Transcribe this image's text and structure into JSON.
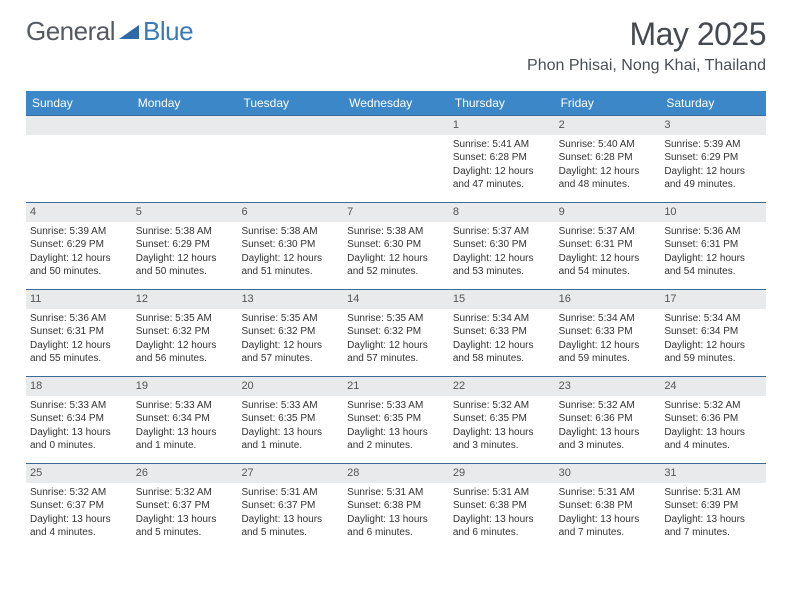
{
  "logo": {
    "text1": "General",
    "text2": "Blue",
    "icon_color": "#2f6aa8"
  },
  "title": "May 2025",
  "location": "Phon Phisai, Nong Khai, Thailand",
  "colors": {
    "header_bg": "#3c87c7",
    "header_text": "#ffffff",
    "band_bg": "#e9eaeb",
    "cell_text": "#333333",
    "border": "#3c6a96",
    "title_color": "#454a50",
    "logo_gray": "#555a60",
    "logo_blue": "#3a7ab8"
  },
  "day_names": [
    "Sunday",
    "Monday",
    "Tuesday",
    "Wednesday",
    "Thursday",
    "Friday",
    "Saturday"
  ],
  "weeks": [
    [
      null,
      null,
      null,
      null,
      {
        "n": 1,
        "sr": "5:41 AM",
        "ss": "6:28 PM",
        "dl": "12 hours and 47 minutes."
      },
      {
        "n": 2,
        "sr": "5:40 AM",
        "ss": "6:28 PM",
        "dl": "12 hours and 48 minutes."
      },
      {
        "n": 3,
        "sr": "5:39 AM",
        "ss": "6:29 PM",
        "dl": "12 hours and 49 minutes."
      }
    ],
    [
      {
        "n": 4,
        "sr": "5:39 AM",
        "ss": "6:29 PM",
        "dl": "12 hours and 50 minutes."
      },
      {
        "n": 5,
        "sr": "5:38 AM",
        "ss": "6:29 PM",
        "dl": "12 hours and 50 minutes."
      },
      {
        "n": 6,
        "sr": "5:38 AM",
        "ss": "6:30 PM",
        "dl": "12 hours and 51 minutes."
      },
      {
        "n": 7,
        "sr": "5:38 AM",
        "ss": "6:30 PM",
        "dl": "12 hours and 52 minutes."
      },
      {
        "n": 8,
        "sr": "5:37 AM",
        "ss": "6:30 PM",
        "dl": "12 hours and 53 minutes."
      },
      {
        "n": 9,
        "sr": "5:37 AM",
        "ss": "6:31 PM",
        "dl": "12 hours and 54 minutes."
      },
      {
        "n": 10,
        "sr": "5:36 AM",
        "ss": "6:31 PM",
        "dl": "12 hours and 54 minutes."
      }
    ],
    [
      {
        "n": 11,
        "sr": "5:36 AM",
        "ss": "6:31 PM",
        "dl": "12 hours and 55 minutes."
      },
      {
        "n": 12,
        "sr": "5:35 AM",
        "ss": "6:32 PM",
        "dl": "12 hours and 56 minutes."
      },
      {
        "n": 13,
        "sr": "5:35 AM",
        "ss": "6:32 PM",
        "dl": "12 hours and 57 minutes."
      },
      {
        "n": 14,
        "sr": "5:35 AM",
        "ss": "6:32 PM",
        "dl": "12 hours and 57 minutes."
      },
      {
        "n": 15,
        "sr": "5:34 AM",
        "ss": "6:33 PM",
        "dl": "12 hours and 58 minutes."
      },
      {
        "n": 16,
        "sr": "5:34 AM",
        "ss": "6:33 PM",
        "dl": "12 hours and 59 minutes."
      },
      {
        "n": 17,
        "sr": "5:34 AM",
        "ss": "6:34 PM",
        "dl": "12 hours and 59 minutes."
      }
    ],
    [
      {
        "n": 18,
        "sr": "5:33 AM",
        "ss": "6:34 PM",
        "dl": "13 hours and 0 minutes."
      },
      {
        "n": 19,
        "sr": "5:33 AM",
        "ss": "6:34 PM",
        "dl": "13 hours and 1 minute."
      },
      {
        "n": 20,
        "sr": "5:33 AM",
        "ss": "6:35 PM",
        "dl": "13 hours and 1 minute."
      },
      {
        "n": 21,
        "sr": "5:33 AM",
        "ss": "6:35 PM",
        "dl": "13 hours and 2 minutes."
      },
      {
        "n": 22,
        "sr": "5:32 AM",
        "ss": "6:35 PM",
        "dl": "13 hours and 3 minutes."
      },
      {
        "n": 23,
        "sr": "5:32 AM",
        "ss": "6:36 PM",
        "dl": "13 hours and 3 minutes."
      },
      {
        "n": 24,
        "sr": "5:32 AM",
        "ss": "6:36 PM",
        "dl": "13 hours and 4 minutes."
      }
    ],
    [
      {
        "n": 25,
        "sr": "5:32 AM",
        "ss": "6:37 PM",
        "dl": "13 hours and 4 minutes."
      },
      {
        "n": 26,
        "sr": "5:32 AM",
        "ss": "6:37 PM",
        "dl": "13 hours and 5 minutes."
      },
      {
        "n": 27,
        "sr": "5:31 AM",
        "ss": "6:37 PM",
        "dl": "13 hours and 5 minutes."
      },
      {
        "n": 28,
        "sr": "5:31 AM",
        "ss": "6:38 PM",
        "dl": "13 hours and 6 minutes."
      },
      {
        "n": 29,
        "sr": "5:31 AM",
        "ss": "6:38 PM",
        "dl": "13 hours and 6 minutes."
      },
      {
        "n": 30,
        "sr": "5:31 AM",
        "ss": "6:38 PM",
        "dl": "13 hours and 7 minutes."
      },
      {
        "n": 31,
        "sr": "5:31 AM",
        "ss": "6:39 PM",
        "dl": "13 hours and 7 minutes."
      }
    ]
  ],
  "labels": {
    "sunrise": "Sunrise:",
    "sunset": "Sunset:",
    "daylight": "Daylight:"
  }
}
